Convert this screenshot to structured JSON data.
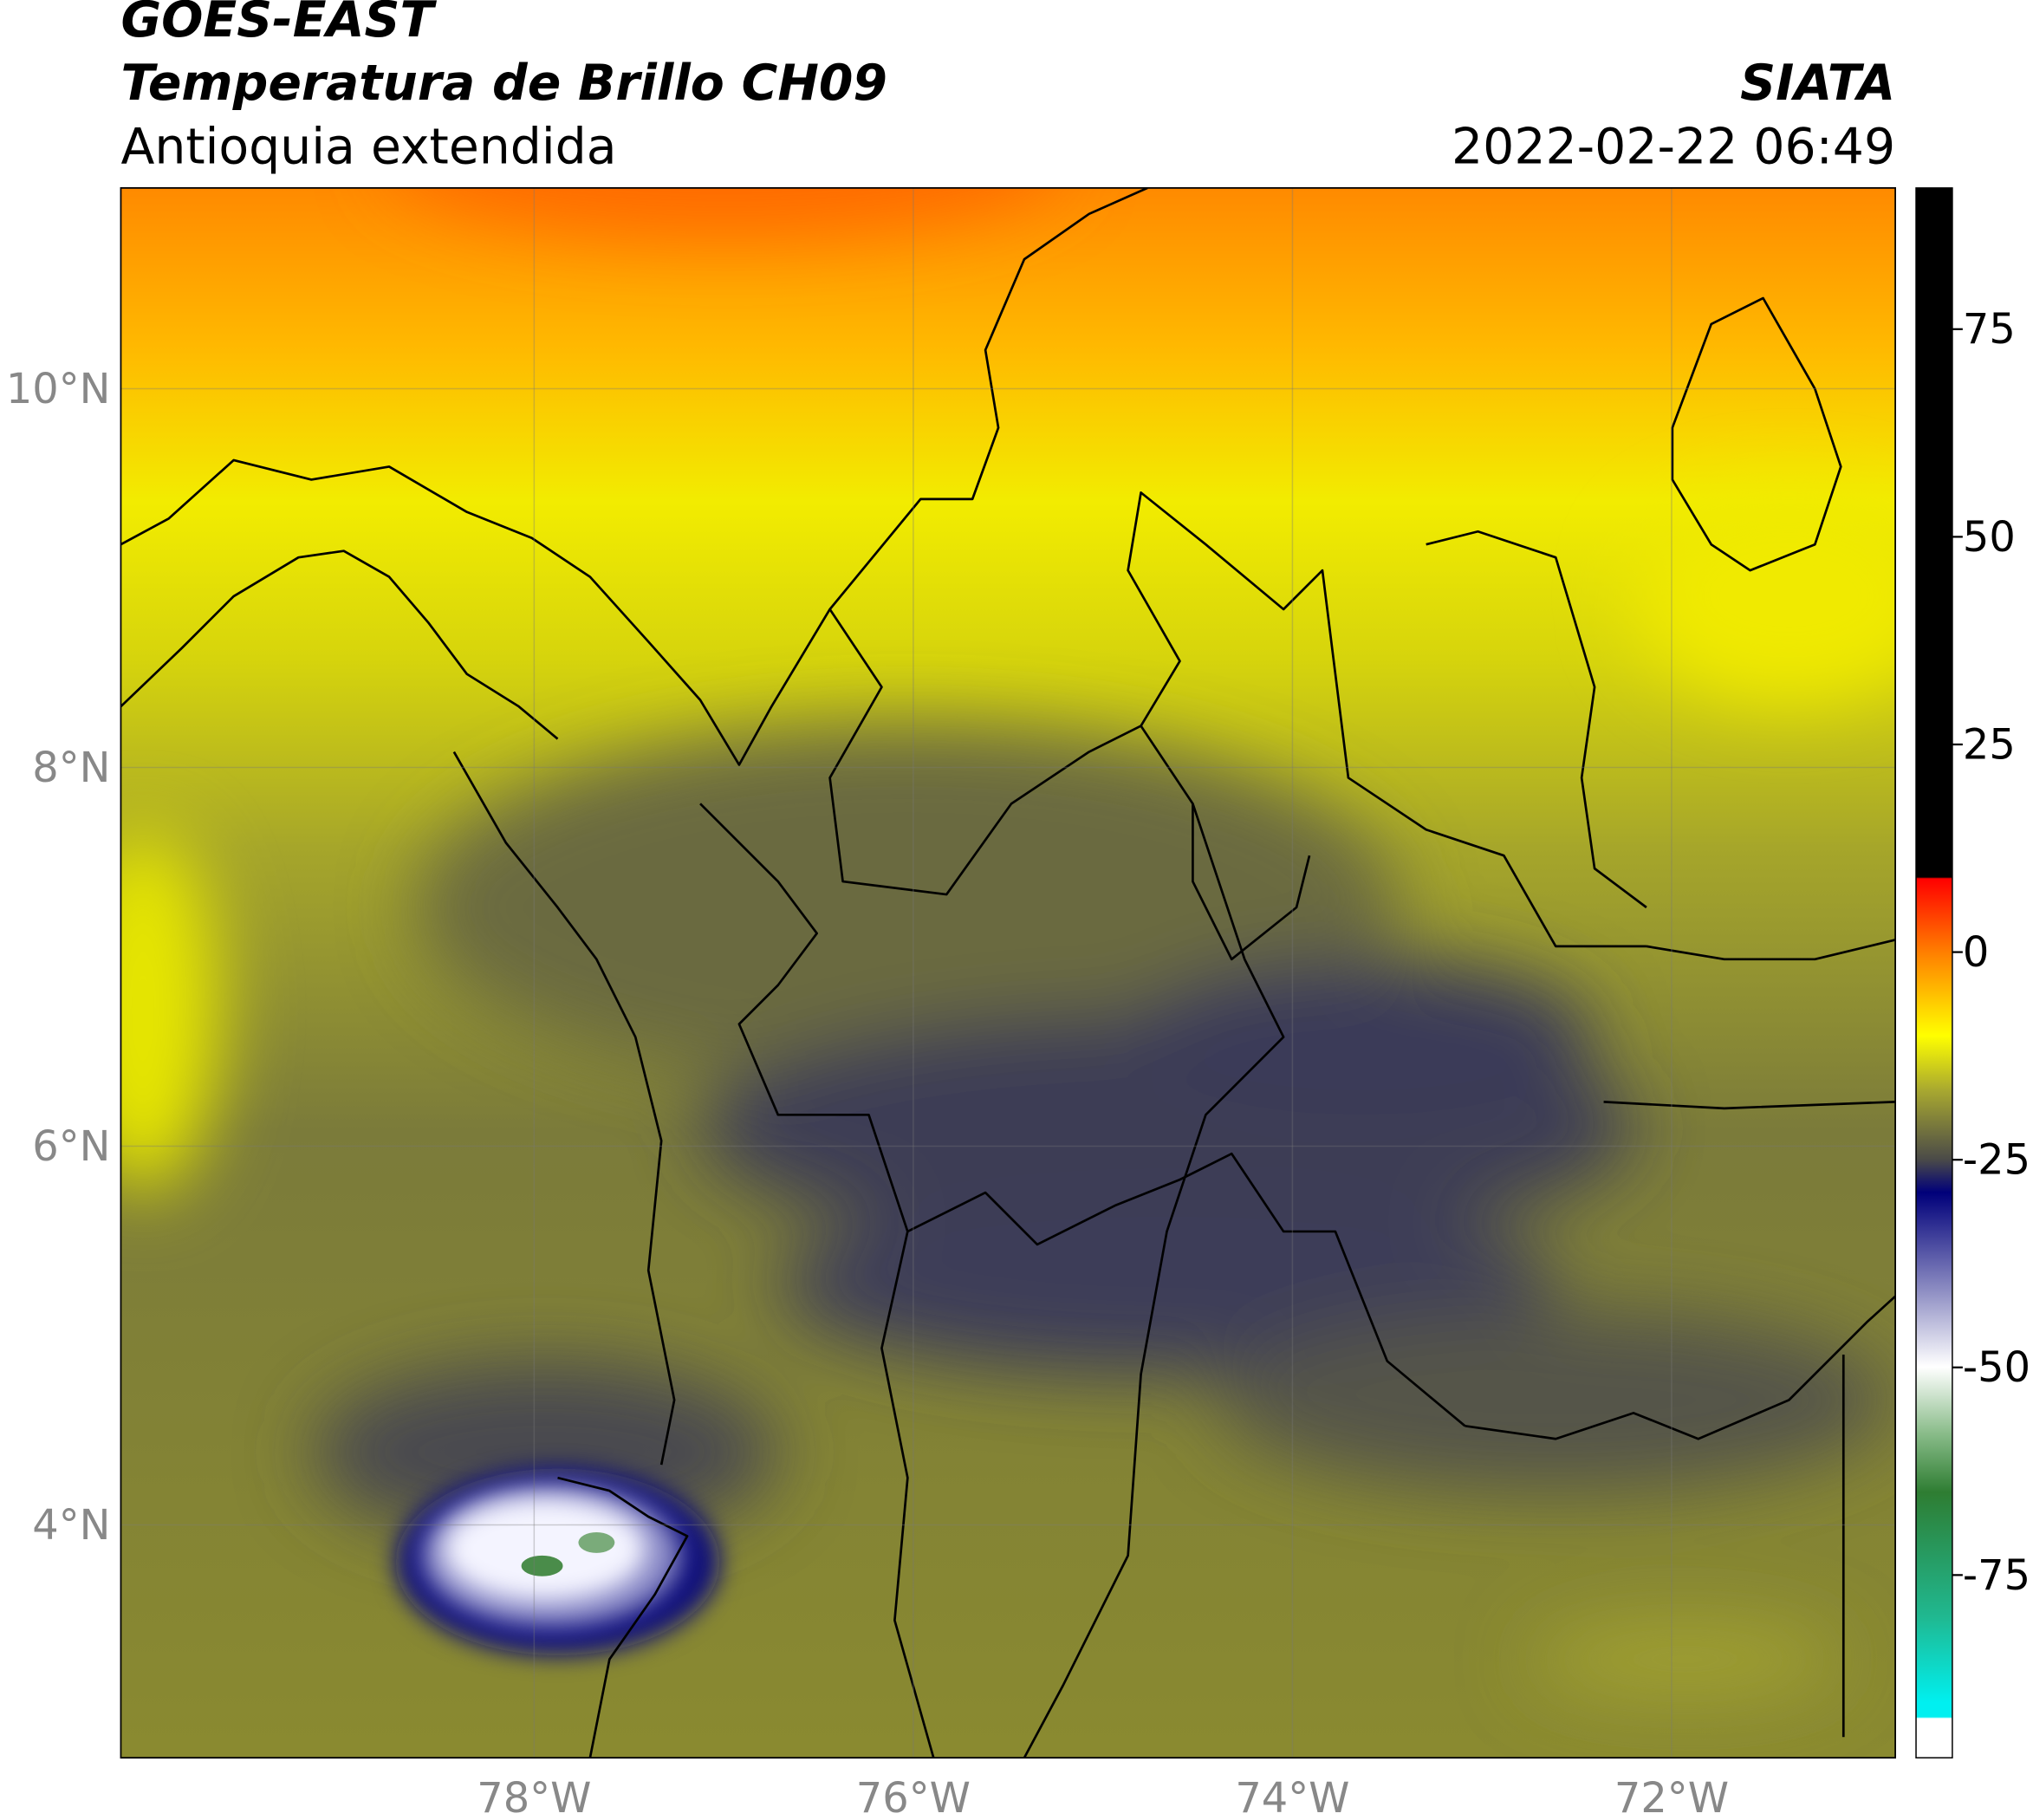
{
  "header": {
    "title": "GOES-EAST",
    "subtitle": "Temperatura de Brillo CH09",
    "region": "Antioquia extendida",
    "source": "SIATA",
    "datetime": "2022-02-22 06:49"
  },
  "map": {
    "xlim": [
      -80.18,
      -70.82
    ],
    "ylim": [
      2.77,
      11.06
    ],
    "xticks": [
      {
        "value": -78,
        "label": "78°W"
      },
      {
        "value": -76,
        "label": "76°W"
      },
      {
        "value": -74,
        "label": "74°W"
      },
      {
        "value": -72,
        "label": "72°W"
      }
    ],
    "yticks": [
      {
        "value": 10,
        "label": "10°N"
      },
      {
        "value": 8,
        "label": "8°N"
      },
      {
        "value": 6,
        "label": "6°N"
      },
      {
        "value": 4,
        "label": "4°N"
      }
    ],
    "grid": true
  },
  "colorbar": {
    "lim": [
      -97,
      92
    ],
    "ticks": [
      75,
      50,
      25,
      0,
      -25,
      -50,
      -75
    ]
  }
}
